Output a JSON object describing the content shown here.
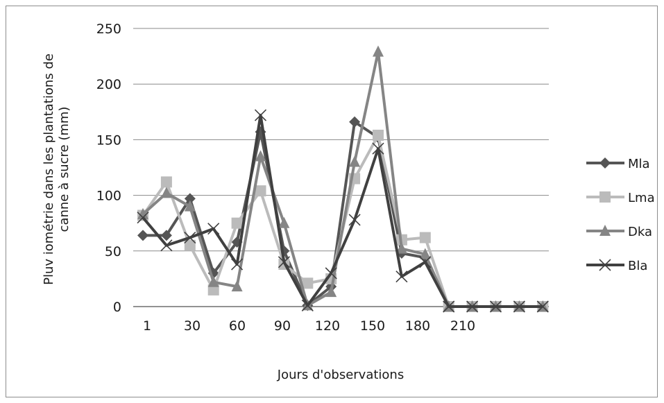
{
  "chart_data": {
    "type": "line",
    "ylabel_lines": [
      "Pluv iométrie dans les plantations de",
      "canne à sucre  (mm)"
    ],
    "xlabel": "Jours d'observations",
    "ylim": [
      0,
      250
    ],
    "y_ticks": [
      0,
      50,
      100,
      150,
      200,
      250
    ],
    "x_tick_labels": [
      "1",
      "30",
      "60",
      "90",
      "120",
      "150",
      "180",
      "210",
      "",
      "",
      "",
      "",
      "",
      "",
      "",
      "",
      "",
      "",
      ""
    ],
    "grid": "horizontal",
    "legend_position": "right",
    "series": [
      {
        "name": "Mla",
        "color": "#555555",
        "marker": "diamond",
        "values": [
          64,
          64,
          97,
          30,
          58,
          157,
          50,
          1,
          18,
          166,
          152,
          48,
          44,
          0,
          0,
          0,
          0,
          0
        ]
      },
      {
        "name": "Lma",
        "color": "#bbbbbb",
        "marker": "square",
        "values": [
          82,
          112,
          55,
          15,
          75,
          104,
          38,
          21,
          25,
          115,
          154,
          60,
          62,
          0,
          0,
          0,
          0,
          0
        ]
      },
      {
        "name": "Dka",
        "color": "#858585",
        "marker": "triangle",
        "values": [
          83,
          102,
          90,
          22,
          18,
          135,
          75,
          1,
          13,
          130,
          229,
          52,
          47,
          0,
          0,
          0,
          0,
          0
        ]
      },
      {
        "name": "Bla",
        "color": "#404040",
        "marker": "x",
        "values": [
          80,
          55,
          62,
          70,
          38,
          172,
          40,
          1,
          30,
          78,
          142,
          27,
          40,
          0,
          0,
          0,
          0,
          0
        ]
      }
    ]
  }
}
